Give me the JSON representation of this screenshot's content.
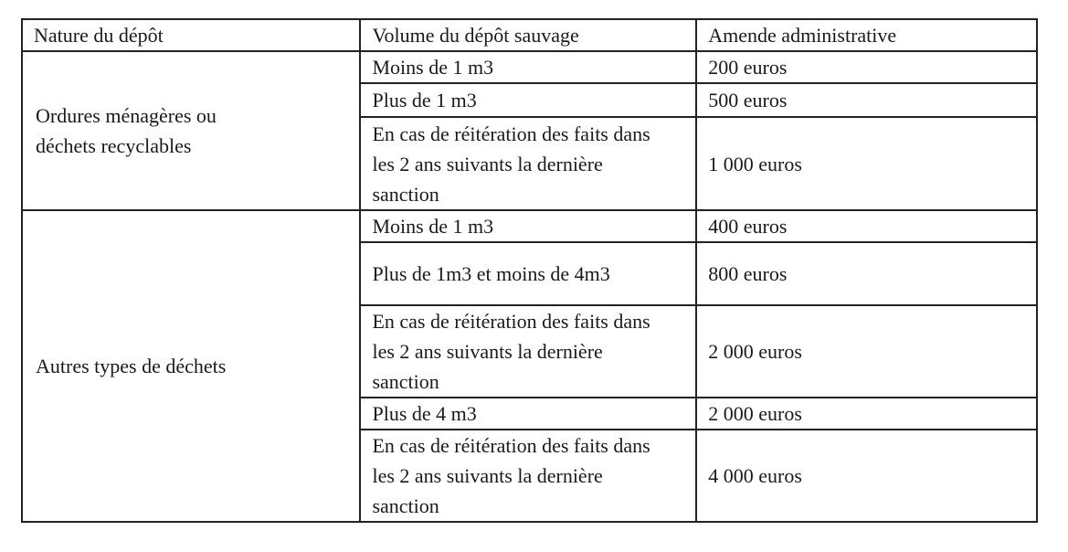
{
  "table": {
    "headers": [
      "Nature du dépôt",
      "Volume du dépôt sauvage",
      "Amende administrative"
    ],
    "groups": [
      {
        "nature": "Ordures ménagères ou déchets recyclables",
        "rows": [
          {
            "volume": "Moins de 1 m3",
            "amende": "200 euros"
          },
          {
            "volume": "Plus de 1 m3",
            "amende": "500 euros"
          },
          {
            "volume": "En cas de réitération des faits dans les 2 ans suivants la dernière sanction",
            "amende": "1 000 euros"
          }
        ]
      },
      {
        "nature": "Autres types de déchets",
        "rows": [
          {
            "volume": "Moins de 1 m3",
            "amende": "400 euros"
          },
          {
            "volume": "Plus de 1m3 et moins de 4m3",
            "amende": "800 euros"
          },
          {
            "volume": "En cas de réitération des faits dans les 2 ans suivants la dernière sanction",
            "amende": "2 000 euros"
          },
          {
            "volume": "Plus de 4 m3",
            "amende": "2 000 euros"
          },
          {
            "volume": "En cas de réitération des faits dans les 2 ans suivants la dernière sanction",
            "amende": "4 000 euros"
          }
        ]
      }
    ]
  }
}
